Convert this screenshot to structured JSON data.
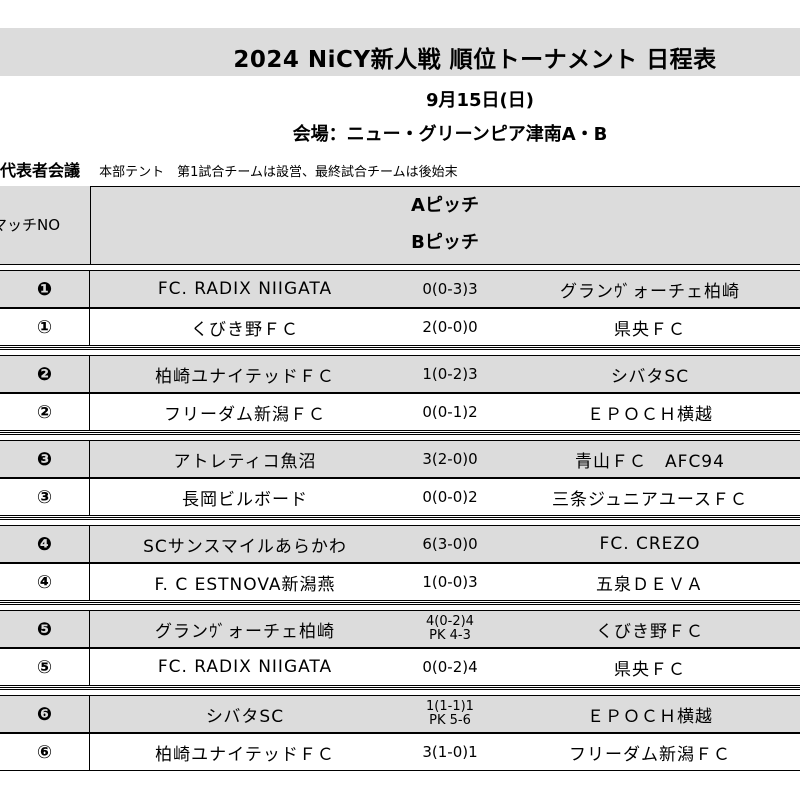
{
  "header": {
    "title": "2024 NiCY新人戦 順位トーナメント 日程表",
    "date": "9月15日(日)",
    "venue": "会場：ニュー・グリーンピア津南A・B",
    "meeting_label": "代表者会議",
    "meeting_note": "本部テント　第1試合チームは設営、最終試合チームは後始末"
  },
  "table": {
    "match_no_label": "マッチNO",
    "pitch_a": "Aピッチ",
    "pitch_b": "Bピッチ",
    "matches": [
      {
        "no": "❶",
        "home": "FC. RADIX NIIGATA",
        "score": "0(0-3)3",
        "pk": "",
        "away": "グランｳﾞォーチェ柏崎"
      },
      {
        "no": "①",
        "home": "くびき野ＦＣ",
        "score": "2(0-0)0",
        "pk": "",
        "away": "県央ＦＣ"
      },
      {
        "no": "❷",
        "home": "柏崎ユナイテッドＦＣ",
        "score": "1(0-2)3",
        "pk": "",
        "away": "シバタSC"
      },
      {
        "no": "②",
        "home": "フリーダム新潟ＦＣ",
        "score": "0(0-1)2",
        "pk": "",
        "away": "ＥＰＯＣＨ横越"
      },
      {
        "no": "❸",
        "home": "アトレティコ魚沼",
        "score": "3(2-0)0",
        "pk": "",
        "away": "青山ＦＣ　AFC94"
      },
      {
        "no": "③",
        "home": "長岡ビルボード",
        "score": "0(0-0)2",
        "pk": "",
        "away": "三条ジュニアユースＦＣ"
      },
      {
        "no": "❹",
        "home": "SCサンスマイルあらかわ",
        "score": "6(3-0)0",
        "pk": "",
        "away": "FC. CREZO"
      },
      {
        "no": "④",
        "home": "F. C ESTNOVA新潟燕",
        "score": "1(0-0)3",
        "pk": "",
        "away": "五泉ＤＥＶＡ"
      },
      {
        "no": "❺",
        "home": "グランｳﾞォーチェ柏崎",
        "score": "4(0-2)4",
        "pk": "PK 4-3",
        "away": "くびき野ＦＣ"
      },
      {
        "no": "⑤",
        "home": "FC. RADIX NIIGATA",
        "score": "0(0-2)4",
        "pk": "",
        "away": "県央ＦＣ"
      },
      {
        "no": "❻",
        "home": "シバタSC",
        "score": "1(1-1)1",
        "pk": "PK 5-6",
        "away": "ＥＰＯＣＨ横越"
      },
      {
        "no": "⑥",
        "home": "柏崎ユナイテッドＦＣ",
        "score": "3(1-0)1",
        "pk": "",
        "away": "フリーダム新潟ＦＣ"
      }
    ]
  }
}
